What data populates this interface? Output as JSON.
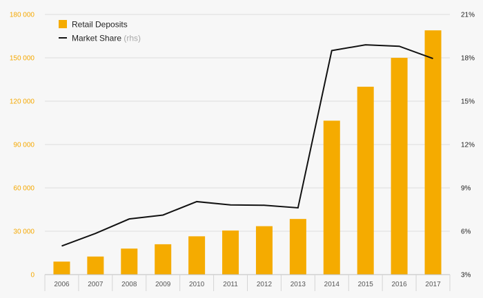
{
  "chart_data": {
    "type": "bar+line",
    "categories": [
      "2006",
      "2007",
      "2008",
      "2009",
      "2010",
      "2011",
      "2012",
      "2013",
      "2014",
      "2015",
      "2016",
      "2017"
    ],
    "series": [
      {
        "name": "Retail Deposits",
        "axis": "left",
        "kind": "bar",
        "values": [
          9000,
          12500,
          18000,
          21000,
          26500,
          30500,
          33500,
          38500,
          106500,
          130000,
          150000,
          169000
        ]
      },
      {
        "name": "Market Share",
        "axis": "right",
        "kind": "line",
        "values": [
          4.98,
          5.85,
          6.85,
          7.12,
          8.05,
          7.82,
          7.8,
          7.62,
          18.5,
          18.9,
          18.8,
          17.95
        ]
      }
    ],
    "left_axis": {
      "ylim": [
        0,
        180000
      ],
      "ticks": [
        0,
        30000,
        60000,
        90000,
        120000,
        150000,
        180000
      ],
      "tick_labels": [
        "0",
        "30 000",
        "60 000",
        "90 000",
        "120 000",
        "150 000",
        "180 000"
      ]
    },
    "right_axis": {
      "ylim": [
        3,
        21
      ],
      "ticks": [
        3,
        6,
        9,
        12,
        15,
        18,
        21
      ],
      "tick_labels": [
        "3%",
        "6%",
        "9%",
        "12%",
        "15%",
        "18%",
        "21%"
      ]
    },
    "legend": {
      "position": "top-left",
      "items": [
        {
          "label": "Retail Deposits",
          "suffix": "",
          "marker": "square"
        },
        {
          "label": "Market Share",
          "suffix": " (rhs)",
          "marker": "line"
        }
      ]
    },
    "grid": true,
    "title": "",
    "xlabel": "",
    "ylabel": ""
  },
  "colors": {
    "bar": "#f5ab00",
    "line": "#111111",
    "grid": "#dedede",
    "left_tick": "#f5a800",
    "right_tick": "#222222",
    "x_tick": "#555555",
    "background": "#f7f7f7"
  }
}
